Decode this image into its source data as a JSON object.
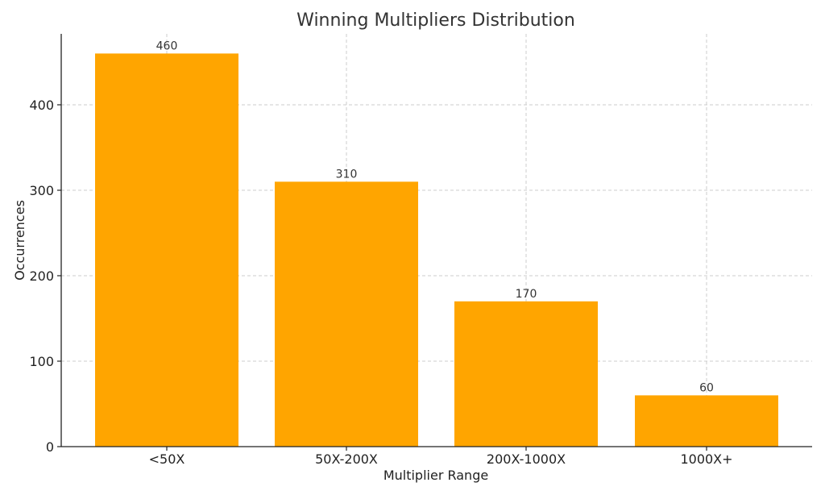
{
  "chart_data": {
    "type": "bar",
    "title": "Winning Multipliers Distribution",
    "xlabel": "Multiplier Range",
    "ylabel": "Occurrences",
    "categories": [
      "<50X",
      "50X-200X",
      "200X-1000X",
      "1000X+"
    ],
    "values": [
      460,
      310,
      170,
      60
    ],
    "data_labels": [
      "460",
      "310",
      "170",
      "60"
    ],
    "y_ticks": [
      0,
      100,
      200,
      300,
      400
    ],
    "ylim": [
      0,
      483
    ],
    "grid": true,
    "bar_color": "#FFA500"
  }
}
